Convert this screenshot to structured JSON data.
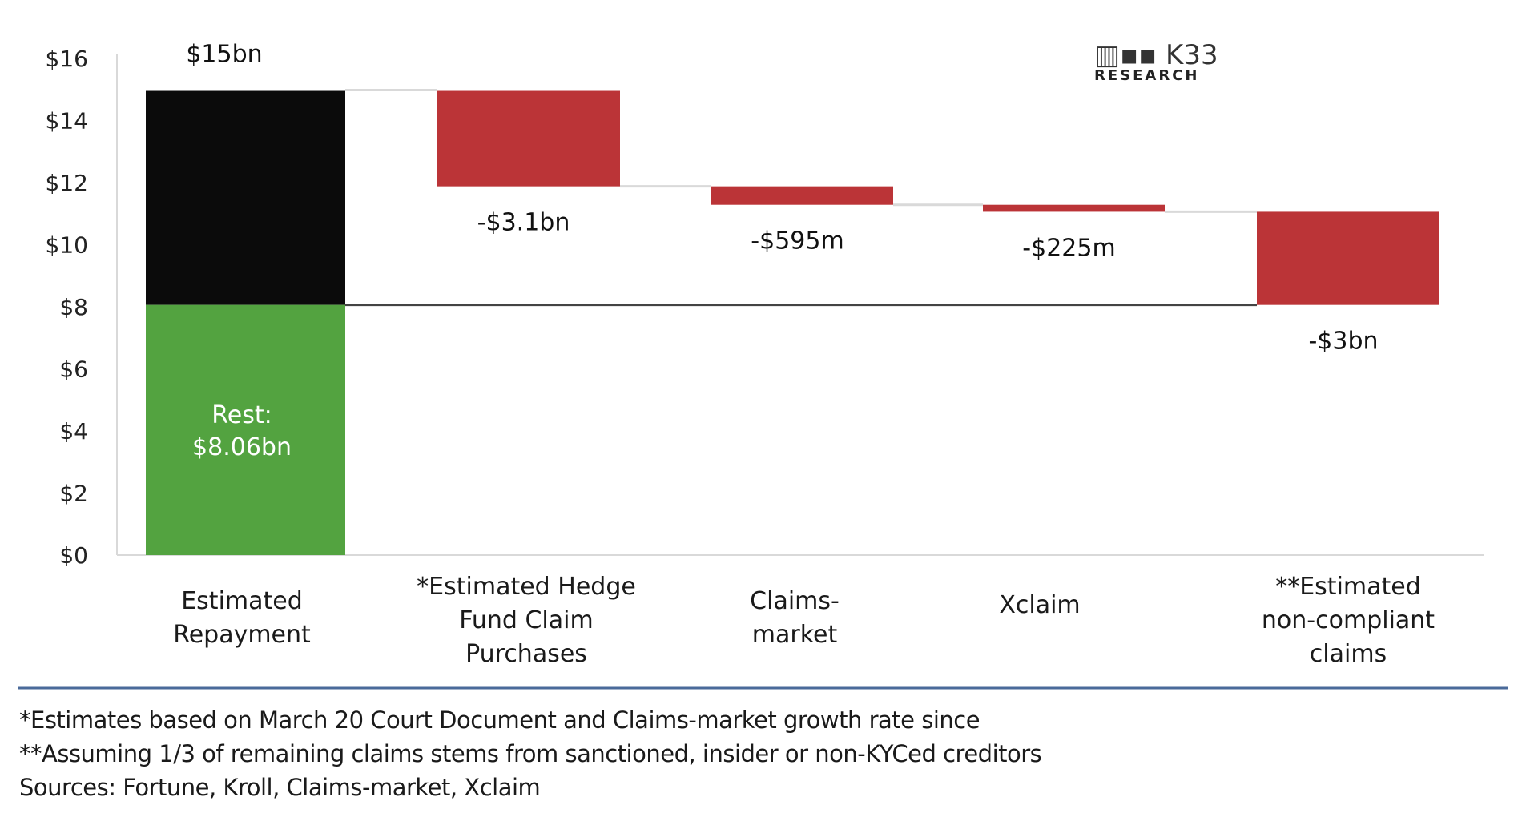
{
  "chart_data": {
    "type": "waterfall",
    "title": "",
    "ylim": [
      0,
      16
    ],
    "y_ticks": [
      "$0",
      "$2",
      "$4",
      "$6",
      "$8",
      "$10",
      "$12",
      "$14",
      "$16"
    ],
    "y_tick_values": [
      0,
      2,
      4,
      6,
      8,
      10,
      12,
      14,
      16
    ],
    "grid": false,
    "categories": [
      "Estimated Repayment",
      "*Estimated Hedge Fund Claim Purchases",
      "Claims-market",
      "Xclaim",
      "**Estimated non-compliant claims"
    ],
    "category_lines": [
      [
        "Estimated",
        "Repayment"
      ],
      [
        "*Estimated Hedge",
        "Fund Claim",
        "Purchases"
      ],
      [
        "Claims-",
        "market"
      ],
      [
        "Xclaim"
      ],
      [
        "**Estimated",
        "non-compliant",
        "claims"
      ]
    ],
    "total": {
      "value": 14.98,
      "label": "$15bn",
      "rest_value": 8.06,
      "rest_label_lines": [
        "Rest:",
        "$8.06bn"
      ]
    },
    "deltas": [
      {
        "value": -3.1,
        "label": "-$3.1bn"
      },
      {
        "value": -0.595,
        "label": "-$595m"
      },
      {
        "value": -0.225,
        "label": "-$225m"
      },
      {
        "value": -3.0,
        "label": "-$3bn"
      }
    ],
    "colors": {
      "total": "#0b0b0b",
      "rest": "#53a340",
      "decrease": "#bb3437",
      "connector": "#d9d9d9",
      "rest_line": "#444444",
      "rule": "#4a6a9a"
    }
  },
  "logo": {
    "brand": "K33",
    "sub": "RESEARCH"
  },
  "footnotes": [
    "*Estimates based on March 20 Court Document and Claims-market growth rate since",
    "**Assuming 1/3 of remaining claims stems from sanctioned, insider or non-KYCed creditors",
    "Sources: Fortune, Kroll, Claims-market, Xclaim"
  ]
}
